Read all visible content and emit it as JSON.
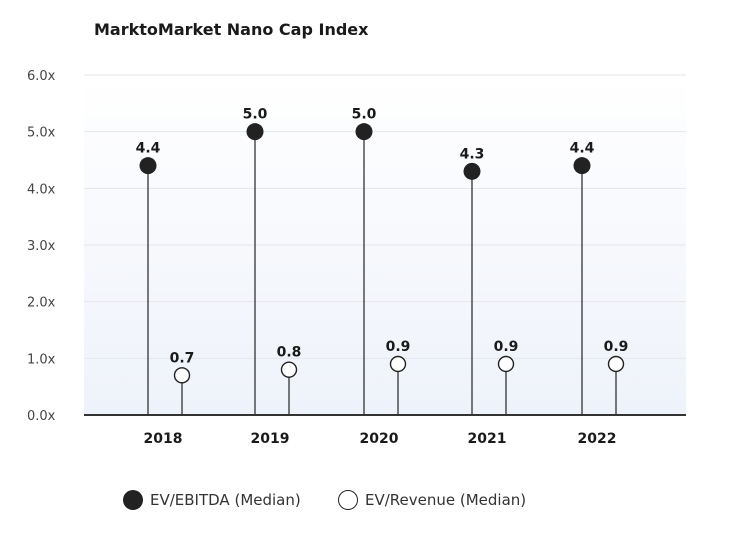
{
  "chart_data": {
    "type": "lollipop",
    "title": "MarktoMarket Nano Cap Index",
    "categories": [
      "2018",
      "2019",
      "2020",
      "2021",
      "2022"
    ],
    "series": [
      {
        "name": "EV/EBITDA (Median)",
        "values": [
          4.4,
          5.0,
          5.0,
          4.3,
          4.4
        ],
        "labels": [
          "4.4",
          "5.0",
          "5.0",
          "4.3",
          "4.4"
        ],
        "marker": "filled",
        "color": "#222222"
      },
      {
        "name": "EV/Revenue (Median)",
        "values": [
          0.7,
          0.8,
          0.9,
          0.9,
          0.9
        ],
        "labels": [
          "0.7",
          "0.8",
          "0.9",
          "0.9",
          "0.9"
        ],
        "marker": "hollow",
        "color": "#222222"
      }
    ],
    "y_ticks": [
      "0.0x",
      "1.0x",
      "2.0x",
      "3.0x",
      "4.0x",
      "5.0x",
      "6.0x"
    ],
    "ylim": [
      0,
      6
    ],
    "grid": true,
    "legend_position": "bottom",
    "colors": {
      "background_gradient": "#eef2fa",
      "grid": "#e2e6ee",
      "axis": "#333333",
      "marker": "#222222"
    }
  }
}
